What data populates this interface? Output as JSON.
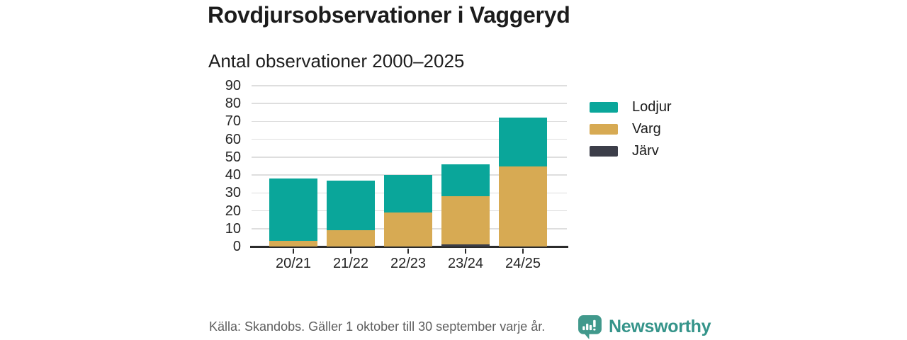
{
  "header": {
    "title": "Rovdjursobservationer i Vaggeryd",
    "subtitle": "Antal observationer 2000–2025"
  },
  "chart_data": {
    "type": "bar",
    "stacked": true,
    "title": "Rovdjursobservationer i Vaggeryd",
    "subtitle": "Antal observationer 2000–2025",
    "categories": [
      "20/21",
      "21/22",
      "22/23",
      "23/24",
      "24/25"
    ],
    "series": [
      {
        "name": "Lodjur",
        "color": "#0aa69a",
        "values": [
          35,
          28,
          21,
          18,
          27
        ]
      },
      {
        "name": "Varg",
        "color": "#d7aa53",
        "values": [
          3,
          9,
          19,
          27,
          45
        ]
      },
      {
        "name": "Järv",
        "color": "#3c3e49",
        "values": [
          0,
          0,
          0,
          1,
          0
        ]
      }
    ],
    "totals": [
      38,
      37,
      40,
      46,
      72
    ],
    "ylim": [
      0,
      90
    ],
    "yticks": [
      0,
      10,
      20,
      30,
      40,
      50,
      60,
      70,
      80,
      90
    ],
    "grid": true,
    "legend_position": "right",
    "legend_entries": [
      "Lodjur",
      "Varg",
      "Järv"
    ]
  },
  "footer": {
    "source": "Källa: Skandobs. Gäller 1 oktober till 30 september varje år.",
    "brand": "Newsworthy"
  },
  "colors": {
    "text": "#1c1c1c",
    "axis": "#2b2b2b",
    "gridline": "#dedede",
    "footer_text": "#5e5e5e",
    "brand_teal": "#35948a",
    "brand_icon": "#41998c",
    "background": "#ffffff"
  }
}
